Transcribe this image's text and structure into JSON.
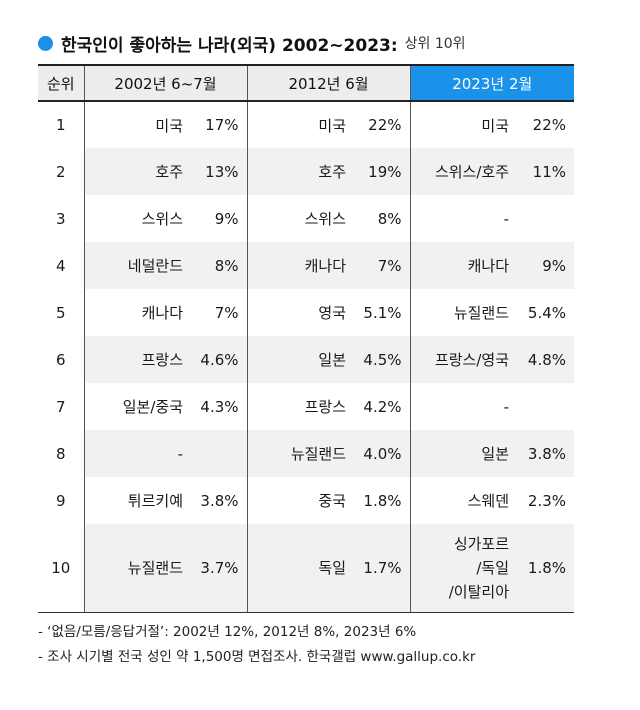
{
  "title": {
    "main": "한국인이 좋아하는 나라(외국) 2002~2023:",
    "sub": "상위 10위"
  },
  "table": {
    "rank_header": "순위",
    "periods": [
      {
        "label": "2002년 6~7월",
        "highlight": false
      },
      {
        "label": "2012년 6월",
        "highlight": false
      },
      {
        "label": "2023년 2월",
        "highlight": true
      }
    ],
    "rows": [
      {
        "rank": "1",
        "cells": [
          {
            "name": "미국",
            "pct": "17%"
          },
          {
            "name": "미국",
            "pct": "22%"
          },
          {
            "name": "미국",
            "pct": "22%"
          }
        ]
      },
      {
        "rank": "2",
        "cells": [
          {
            "name": "호주",
            "pct": "13%"
          },
          {
            "name": "호주",
            "pct": "19%"
          },
          {
            "name": "스위스/호주",
            "pct": "11%"
          }
        ]
      },
      {
        "rank": "3",
        "cells": [
          {
            "name": "스위스",
            "pct": "9%"
          },
          {
            "name": "스위스",
            "pct": "8%"
          },
          {
            "name": "-",
            "pct": ""
          }
        ]
      },
      {
        "rank": "4",
        "cells": [
          {
            "name": "네덜란드",
            "pct": "8%"
          },
          {
            "name": "캐나다",
            "pct": "7%"
          },
          {
            "name": "캐나다",
            "pct": "9%"
          }
        ]
      },
      {
        "rank": "5",
        "cells": [
          {
            "name": "캐나다",
            "pct": "7%"
          },
          {
            "name": "영국",
            "pct": "5.1%"
          },
          {
            "name": "뉴질랜드",
            "pct": "5.4%"
          }
        ]
      },
      {
        "rank": "6",
        "cells": [
          {
            "name": "프랑스",
            "pct": "4.6%"
          },
          {
            "name": "일본",
            "pct": "4.5%"
          },
          {
            "name": "프랑스/영국",
            "pct": "4.8%"
          }
        ]
      },
      {
        "rank": "7",
        "cells": [
          {
            "name": "일본/중국",
            "pct": "4.3%"
          },
          {
            "name": "프랑스",
            "pct": "4.2%"
          },
          {
            "name": "-",
            "pct": ""
          }
        ]
      },
      {
        "rank": "8",
        "cells": [
          {
            "name": "-",
            "pct": ""
          },
          {
            "name": "뉴질랜드",
            "pct": "4.0%"
          },
          {
            "name": "일본",
            "pct": "3.8%"
          }
        ]
      },
      {
        "rank": "9",
        "cells": [
          {
            "name": "튀르키예",
            "pct": "3.8%"
          },
          {
            "name": "중국",
            "pct": "1.8%"
          },
          {
            "name": "스웨덴",
            "pct": "2.3%"
          }
        ]
      },
      {
        "rank": "10",
        "cells": [
          {
            "name": "뉴질랜드",
            "pct": "3.7%"
          },
          {
            "name": "독일",
            "pct": "1.7%"
          },
          {
            "name": "싱가포르\n/독일\n/이탈리아",
            "pct": "1.8%"
          }
        ]
      }
    ]
  },
  "notes": [
    "- ‘없음/모름/응답거절’: 2002년 12%, 2012년 8%, 2023년 6%",
    "- 조사 시기별 전국 성인 약 1,500명 면접조사. 한국갤럽 www.gallup.co.kr"
  ],
  "colors": {
    "accent": "#1a92ea",
    "header_bg": "#ededed",
    "alt_row": "#f1f1f1"
  }
}
